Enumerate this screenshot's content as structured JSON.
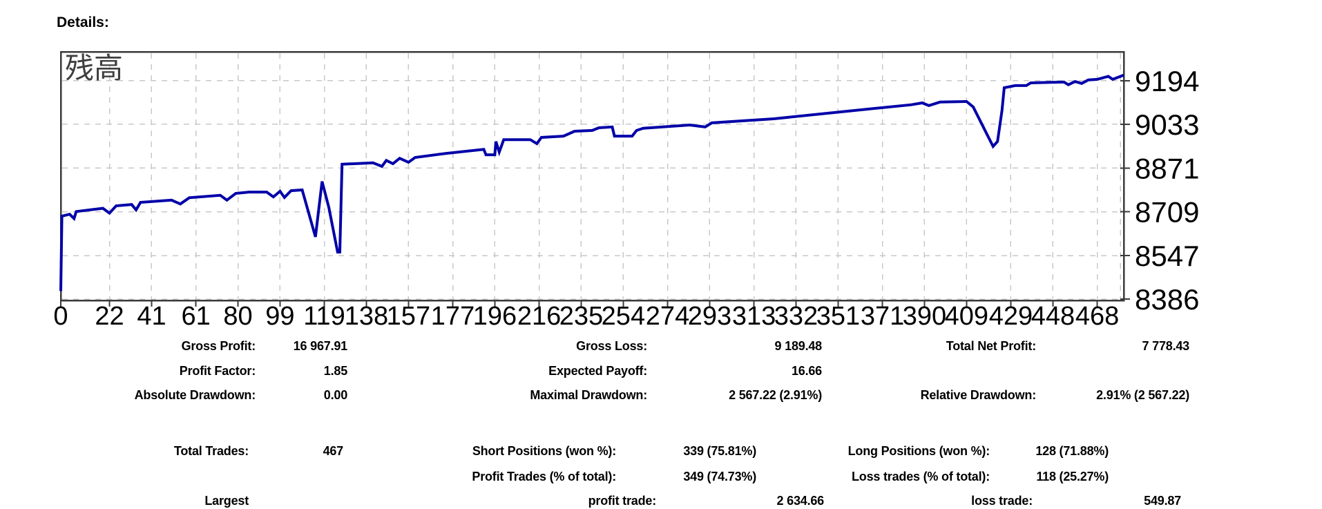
{
  "page": {
    "details_label": "Details:"
  },
  "chart_data": {
    "type": "line",
    "title": "残高",
    "xlabel": "",
    "ylabel": "",
    "xlim": [
      0,
      480
    ],
    "ylim": [
      8381,
      9301
    ],
    "x_ticks": [
      0,
      22,
      41,
      61,
      80,
      99,
      119,
      138,
      157,
      177,
      196,
      216,
      235,
      254,
      274,
      293,
      313,
      332,
      351,
      371,
      390,
      409,
      429,
      448,
      468
    ],
    "y_ticks": [
      9194,
      9033,
      8871,
      8709,
      8547,
      8386
    ],
    "extra_vgrid": [
      478.5
    ],
    "grid": true,
    "legend": "none",
    "line_color": "#0000a8",
    "grid_color": "#c8c8c8",
    "border_color": "#3a3a3a",
    "label_color": "#000000",
    "title_color": "#3f3f3f",
    "series": [
      {
        "name": "残高",
        "points": [
          [
            0,
            8416
          ],
          [
            0.5,
            8693
          ],
          [
            4,
            8700
          ],
          [
            6,
            8684
          ],
          [
            7,
            8710
          ],
          [
            19,
            8722
          ],
          [
            22,
            8704
          ],
          [
            25,
            8731
          ],
          [
            32,
            8736
          ],
          [
            34,
            8716
          ],
          [
            36,
            8744
          ],
          [
            50,
            8752
          ],
          [
            54,
            8738
          ],
          [
            58,
            8761
          ],
          [
            72,
            8770
          ],
          [
            75,
            8752
          ],
          [
            79,
            8777
          ],
          [
            85,
            8782
          ],
          [
            93,
            8782
          ],
          [
            96,
            8764
          ],
          [
            99,
            8785
          ],
          [
            101,
            8762
          ],
          [
            104,
            8787
          ],
          [
            109,
            8790
          ],
          [
            115,
            8616
          ],
          [
            118,
            8821
          ],
          [
            121,
            8726
          ],
          [
            125,
            8560
          ],
          [
            126,
            8560
          ],
          [
            127,
            8885
          ],
          [
            141,
            8890
          ],
          [
            145,
            8877
          ],
          [
            147,
            8899
          ],
          [
            150,
            8887
          ],
          [
            153,
            8907
          ],
          [
            157,
            8892
          ],
          [
            160,
            8910
          ],
          [
            174,
            8925
          ],
          [
            191,
            8940
          ],
          [
            192,
            8920
          ],
          [
            196,
            8920
          ],
          [
            196.5,
            8969
          ],
          [
            198,
            8930
          ],
          [
            200,
            8976
          ],
          [
            212,
            8976
          ],
          [
            215,
            8961
          ],
          [
            217,
            8984
          ],
          [
            227,
            8989
          ],
          [
            232,
            9007
          ],
          [
            240,
            9010
          ],
          [
            243,
            9020
          ],
          [
            249,
            9023
          ],
          [
            250,
            8989
          ],
          [
            258,
            8989
          ],
          [
            260,
            9010
          ],
          [
            263,
            9018
          ],
          [
            284,
            9030
          ],
          [
            291,
            9023
          ],
          [
            294,
            9038
          ],
          [
            322,
            9053
          ],
          [
            356,
            9082
          ],
          [
            384,
            9105
          ],
          [
            389,
            9112
          ],
          [
            392,
            9102
          ],
          [
            397,
            9115
          ],
          [
            409,
            9117
          ],
          [
            412,
            9097
          ],
          [
            421,
            8951
          ],
          [
            423,
            8969
          ],
          [
            425,
            9084
          ],
          [
            426,
            9168
          ],
          [
            431,
            9176
          ],
          [
            436,
            9176
          ],
          [
            438,
            9186
          ],
          [
            453,
            9189
          ],
          [
            455,
            9179
          ],
          [
            458,
            9191
          ],
          [
            461,
            9184
          ],
          [
            464,
            9197
          ],
          [
            468,
            9199
          ],
          [
            473,
            9210
          ],
          [
            475,
            9199
          ],
          [
            480,
            9215
          ]
        ]
      }
    ]
  },
  "stats": {
    "profit_rows": [
      {
        "l1": "Gross Profit:",
        "v1": "16 967.91",
        "l2": "Gross Loss:",
        "v2": "9 189.48",
        "l3": "Total Net Profit:",
        "v3": "7 778.43"
      },
      {
        "l1": "Profit Factor:",
        "v1": "1.85",
        "l2": "Expected Payoff:",
        "v2": "16.66",
        "l3": "",
        "v3": ""
      },
      {
        "l1": "Absolute Drawdown:",
        "v1": "0.00",
        "l2": "Maximal Drawdown:",
        "v2": "2 567.22 (2.91%)",
        "l3": "Relative Drawdown:",
        "v3": "2.91% (2 567.22)"
      }
    ],
    "trade_rows": [
      {
        "l1": "Total Trades:",
        "v1": "467",
        "l2": "Short Positions (won %):",
        "v2": "339 (75.81%)",
        "l3": "Long Positions (won %):",
        "v3": "128 (71.88%)"
      },
      {
        "l1": "",
        "v1": "",
        "l2": "Profit Trades (% of total):",
        "v2": "349 (74.73%)",
        "l3": "Loss trades (% of total):",
        "v3": "118 (25.27%)"
      },
      {
        "l1": "Largest",
        "v1": "",
        "l2": "profit trade:",
        "v2": "2 634.66",
        "l3": "loss trade:",
        "v3": "549.87"
      }
    ]
  }
}
